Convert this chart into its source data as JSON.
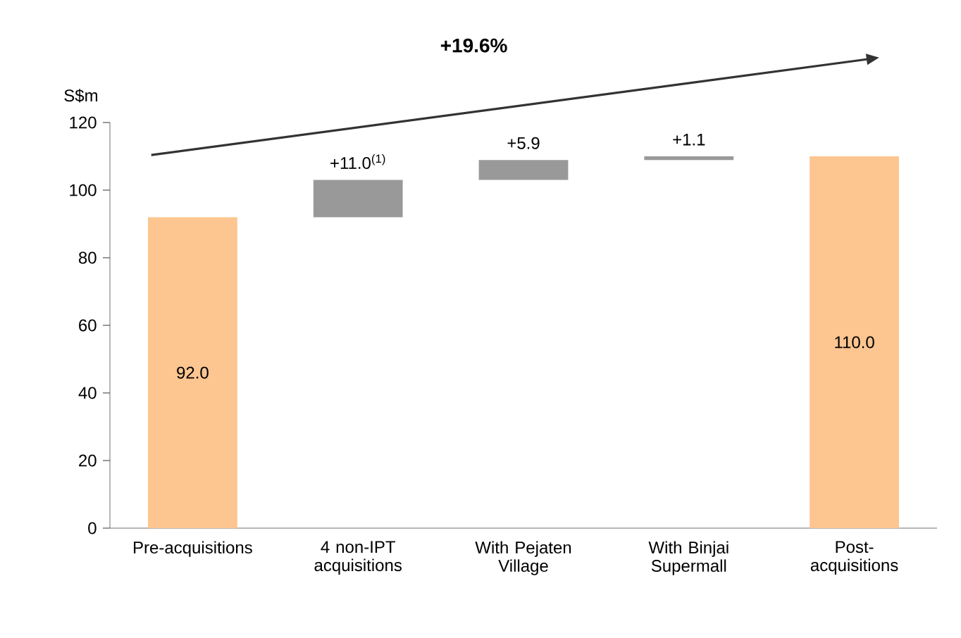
{
  "chart_data": {
    "type": "bar",
    "ylabel": "S$m",
    "categories": [
      "Pre-acquisitions",
      "4 non-IPT acquisitions",
      "With Pejaten Village",
      "With Binjai Supermall",
      "Post-acquisitions"
    ],
    "values": [
      92.0,
      11.0,
      5.9,
      1.1,
      110.0
    ],
    "base": [
      0,
      92.0,
      103.0,
      108.9,
      0
    ],
    "colors": [
      "#fdc590",
      "#999999",
      "#999999",
      "#999999",
      "#fdc590"
    ],
    "value_labels": [
      "92.0",
      "+11.0$^{(1)}$",
      "+5.9",
      "+1.1",
      "110.0"
    ],
    "annotations": [
      "+19.6%"
    ],
    "ylim": [
      0,
      120
    ],
    "yticks": [
      0,
      20,
      40,
      60,
      80,
      100,
      120
    ],
    "grid": false
  }
}
